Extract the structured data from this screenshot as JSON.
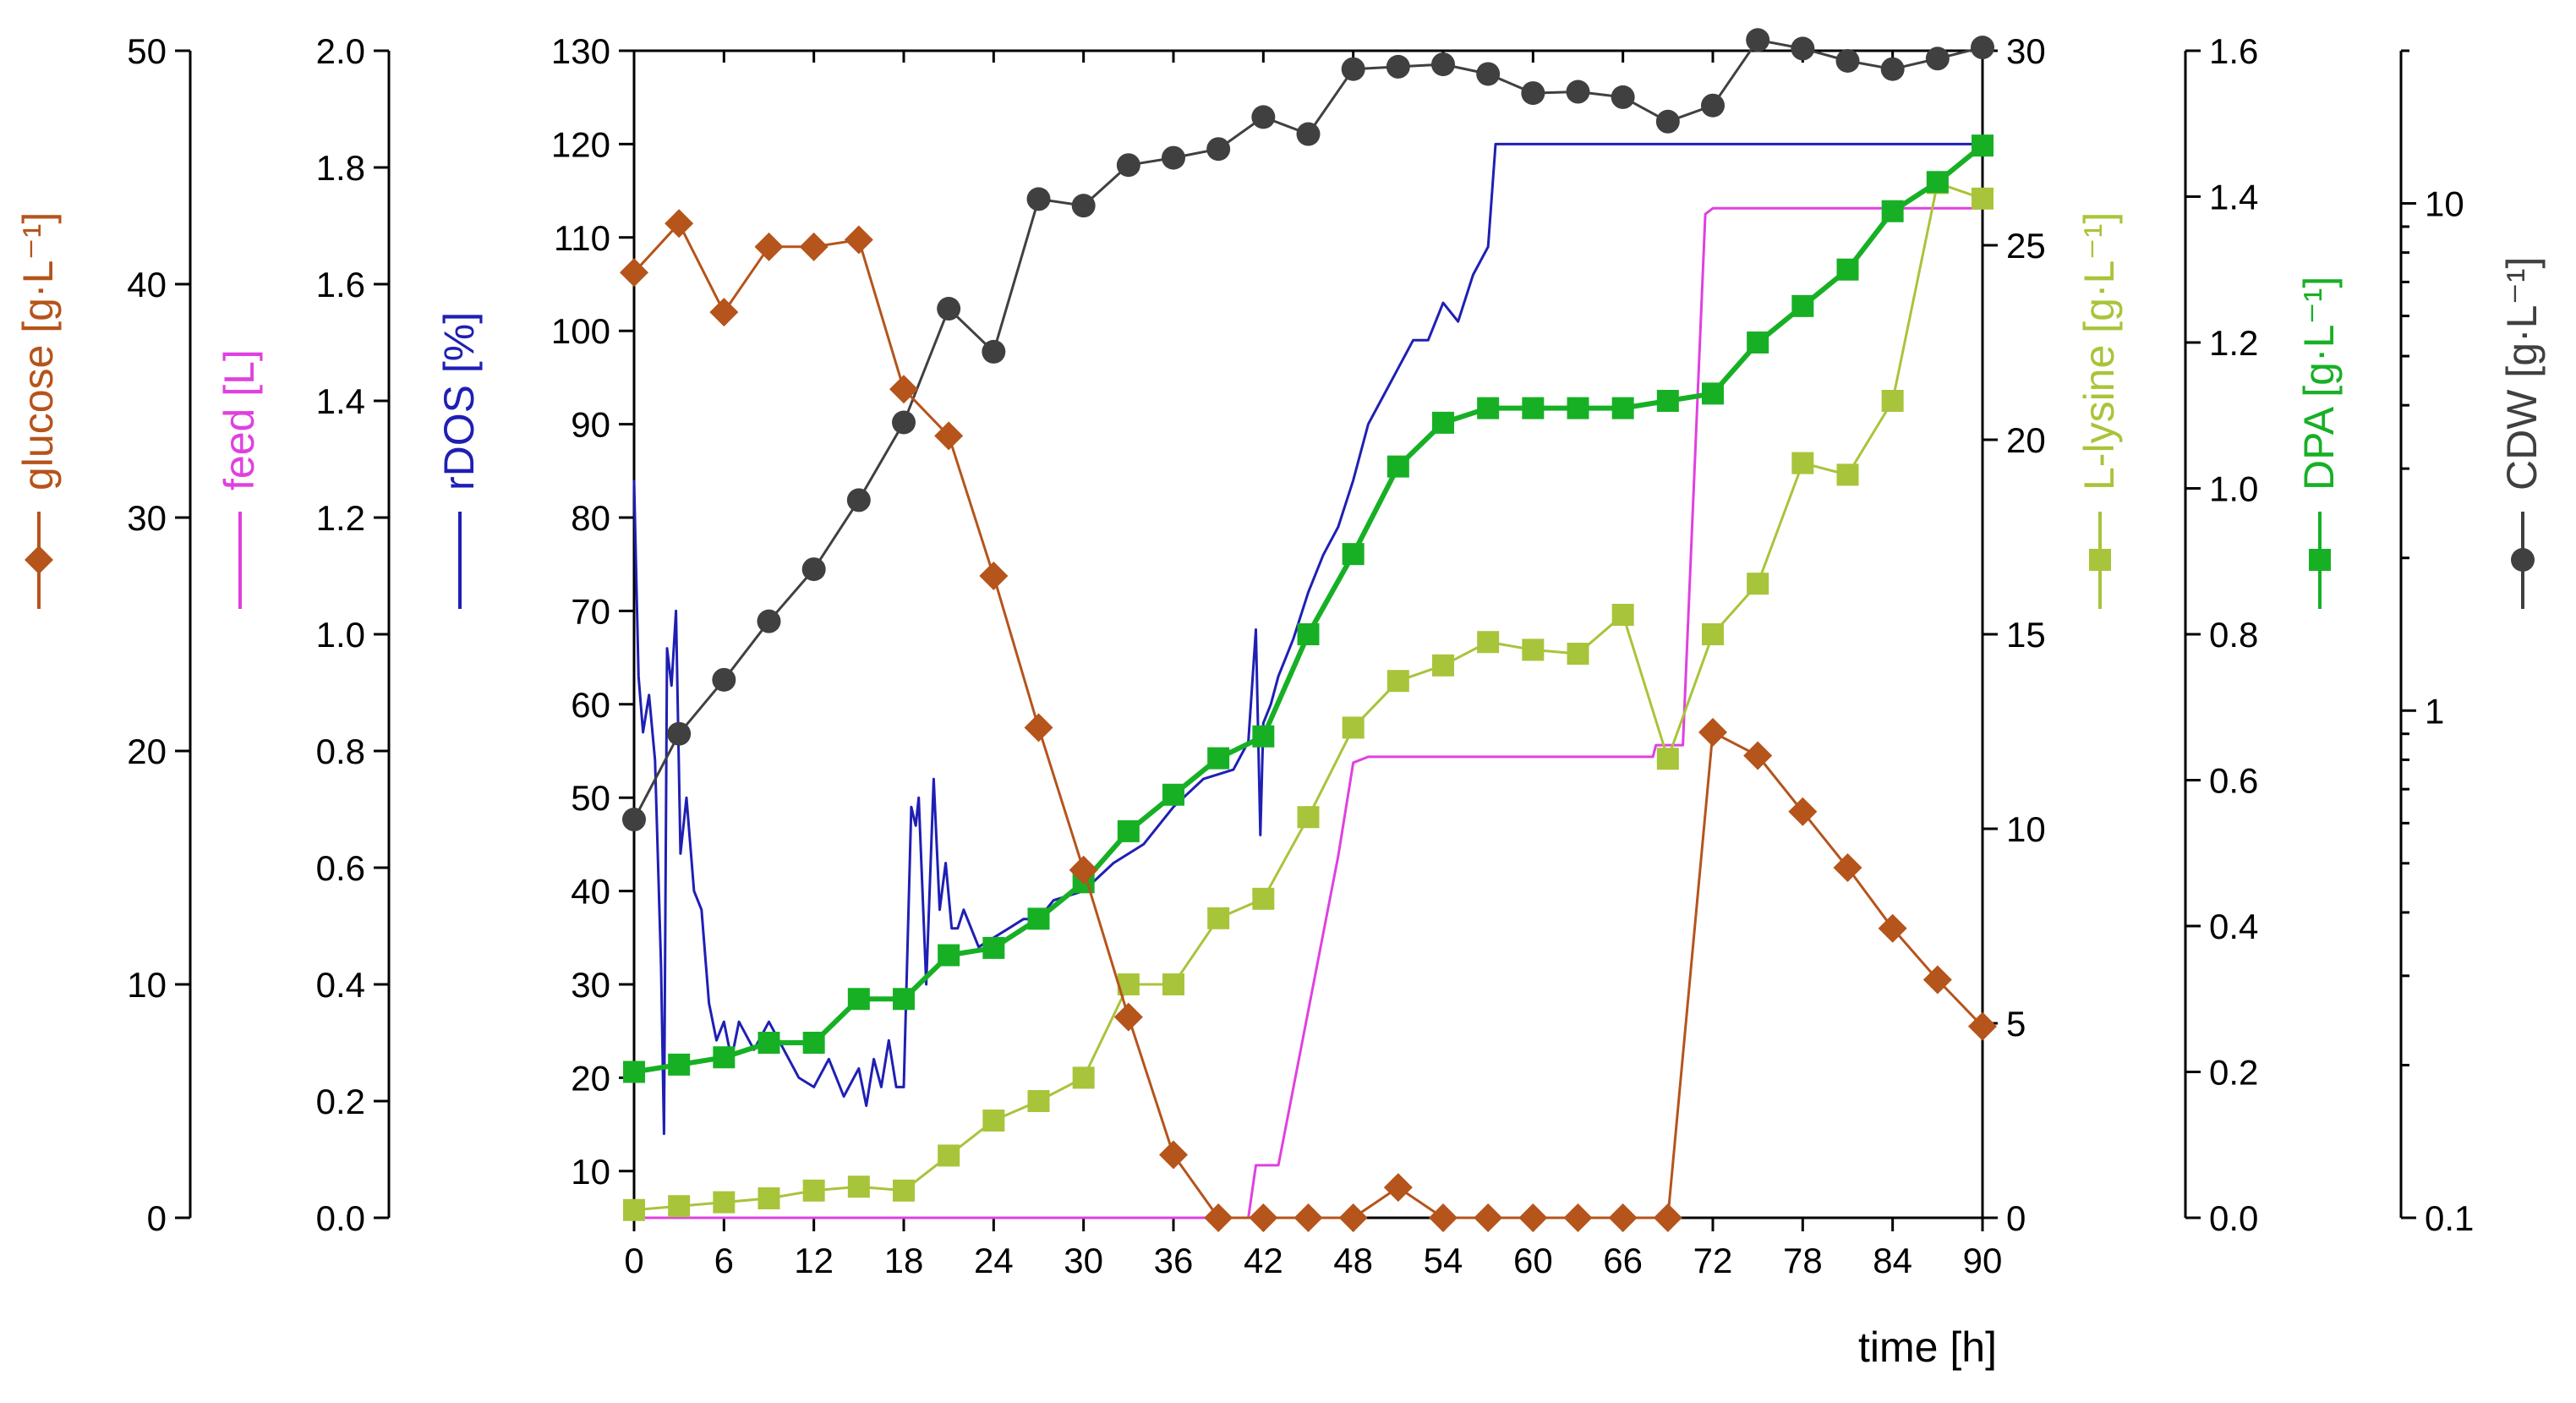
{
  "chart_data": {
    "type": "line",
    "xlabel": "time [h]",
    "xlim": [
      0,
      90
    ],
    "xticks": [
      0,
      6,
      12,
      18,
      24,
      30,
      36,
      42,
      48,
      54,
      60,
      66,
      72,
      78,
      84,
      90
    ],
    "axes": [
      {
        "key": "glucose",
        "label": "glucose [g·L⁻¹]",
        "color": "#b5541b",
        "range": [
          0,
          50
        ],
        "ticks": [
          0,
          10,
          20,
          30,
          40,
          50
        ],
        "tick_labels": [
          "0",
          "10",
          "20",
          "30",
          "40",
          "50"
        ],
        "scale": "linear",
        "side": "left"
      },
      {
        "key": "feed",
        "label": "feed [L]",
        "color": "#e040e0",
        "range": [
          0,
          2
        ],
        "ticks": [
          0,
          0.2,
          0.4,
          0.6,
          0.8,
          1.0,
          1.2,
          1.4,
          1.6,
          1.8,
          2.0
        ],
        "tick_labels": [
          "0.0",
          "0.2",
          "0.4",
          "0.6",
          "0.8",
          "1.0",
          "1.2",
          "1.4",
          "1.6",
          "1.8",
          "2.0"
        ],
        "scale": "linear",
        "side": "left"
      },
      {
        "key": "rdos",
        "label": "rDOS [%]",
        "color": "#1f1fb4",
        "range": [
          5,
          130
        ],
        "ticks": [
          10,
          20,
          30,
          40,
          50,
          60,
          70,
          80,
          90,
          100,
          110,
          120,
          130
        ],
        "tick_labels": [
          "10",
          "20",
          "30",
          "40",
          "50",
          "60",
          "70",
          "80",
          "90",
          "100",
          "110",
          "120",
          "130"
        ],
        "scale": "linear",
        "side": "left"
      },
      {
        "key": "lysine",
        "label": "L-lysine [g·L⁻¹]",
        "color": "#a8c43a",
        "range": [
          0,
          30
        ],
        "ticks": [
          0,
          5,
          10,
          15,
          20,
          25,
          30
        ],
        "tick_labels": [
          "0",
          "5",
          "10",
          "15",
          "20",
          "25",
          "30"
        ],
        "scale": "linear",
        "side": "right"
      },
      {
        "key": "dpa",
        "label": "DPA [g·L⁻¹]",
        "color": "#17b025",
        "range": [
          0,
          1.6
        ],
        "ticks": [
          0,
          0.2,
          0.4,
          0.6,
          0.8,
          1.0,
          1.2,
          1.4,
          1.6
        ],
        "tick_labels": [
          "0.0",
          "0.2",
          "0.4",
          "0.6",
          "0.8",
          "1.0",
          "1.2",
          "1.4",
          "1.6"
        ],
        "scale": "linear",
        "side": "right"
      },
      {
        "key": "cdw",
        "label": "CDW [g·L⁻¹]",
        "color": "#404040",
        "range": [
          0.1,
          20
        ],
        "ticks": [
          0.1,
          1,
          10
        ],
        "tick_labels": [
          "0.1",
          "1",
          "10"
        ],
        "scale": "log",
        "side": "right"
      }
    ],
    "series": [
      {
        "name": "glucose",
        "axis": "glucose",
        "marker": "diamond",
        "color": "#b5541b",
        "x": [
          0,
          3,
          6,
          9,
          12,
          15,
          18,
          21,
          24,
          27,
          30,
          33,
          36,
          39,
          42,
          45,
          48,
          51,
          54,
          57,
          60,
          63,
          66,
          69,
          72,
          75,
          78,
          81,
          84,
          87,
          90
        ],
        "y": [
          40.5,
          42.6,
          38.8,
          41.6,
          41.6,
          41.9,
          35.5,
          33.5,
          27.5,
          21.0,
          14.9,
          8.6,
          2.7,
          0,
          0,
          0,
          0,
          1.3,
          0,
          0,
          0,
          0,
          0,
          0,
          20.8,
          19.8,
          17.4,
          15.0,
          12.4,
          10.2,
          8.2
        ]
      },
      {
        "name": "feed",
        "axis": "feed",
        "marker": "none",
        "color": "#e040e0",
        "x": [
          0,
          41,
          41.5,
          43,
          47,
          48,
          49,
          68,
          68.2,
          70,
          71.5,
          72,
          90
        ],
        "y": [
          0,
          0,
          0.09,
          0.09,
          0.62,
          0.78,
          0.79,
          0.79,
          0.81,
          0.81,
          1.72,
          1.73,
          1.73
        ]
      },
      {
        "name": "rDOS",
        "axis": "rdos",
        "marker": "none",
        "color": "#1f1fb4",
        "x": [
          0,
          0.3,
          0.6,
          1.0,
          1.4,
          1.8,
          2.0,
          2.2,
          2.5,
          2.8,
          3.1,
          3.5,
          4.0,
          4.5,
          5.0,
          5.5,
          6.0,
          6.5,
          7.0,
          8.0,
          9.0,
          10.0,
          11.0,
          12.0,
          13.0,
          14.0,
          15.0,
          15.5,
          16.0,
          16.5,
          17.0,
          17.5,
          18.0,
          18.5,
          18.8,
          19.0,
          19.5,
          20.0,
          20.4,
          20.8,
          21.2,
          21.6,
          22.0,
          23.0,
          24.0,
          25.0,
          26.0,
          27.0,
          28.0,
          30.0,
          32.0,
          34.0,
          36.0,
          38.0,
          40.0,
          41.0,
          41.5,
          41.8,
          42.0,
          42.5,
          43.0,
          44.0,
          45.0,
          46.0,
          47.0,
          48.0,
          49.0,
          50.0,
          51.0,
          52.0,
          53.0,
          54.0,
          55.0,
          56.0,
          57.0,
          57.5,
          58.0,
          58.5,
          90.0
        ],
        "y": [
          84,
          63,
          57,
          61,
          54,
          32,
          14,
          66,
          62,
          70,
          44,
          50,
          40,
          38,
          28,
          24,
          26,
          22,
          26,
          23,
          26,
          23,
          20,
          19,
          22,
          18,
          21,
          17,
          22,
          19,
          24,
          19,
          19,
          49,
          47,
          50,
          30,
          52,
          38,
          43,
          36,
          36,
          38,
          34,
          35,
          36,
          37,
          37,
          39,
          40,
          43,
          45,
          49,
          52,
          53,
          56,
          68,
          46,
          58,
          60,
          63,
          67,
          72,
          76,
          79,
          84,
          90,
          93,
          96,
          99,
          99,
          103,
          101,
          106,
          109,
          120,
          120,
          120,
          120
        ]
      },
      {
        "name": "L-lysine",
        "axis": "lysine",
        "marker": "square",
        "color": "#a8c43a",
        "x": [
          0,
          3,
          6,
          9,
          12,
          15,
          18,
          21,
          24,
          27,
          30,
          33,
          36,
          39,
          42,
          45,
          48,
          51,
          54,
          57,
          60,
          63,
          66,
          69,
          72,
          75,
          78,
          81,
          84,
          87,
          90
        ],
        "y": [
          0.2,
          0.3,
          0.4,
          0.5,
          0.7,
          0.8,
          0.7,
          1.6,
          2.5,
          3.0,
          3.6,
          6.0,
          6.0,
          7.7,
          8.2,
          10.3,
          12.6,
          13.8,
          14.2,
          14.8,
          14.6,
          14.5,
          15.5,
          11.8,
          15.0,
          16.3,
          19.4,
          19.1,
          21.0,
          26.6,
          26.2
        ]
      },
      {
        "name": "DPA",
        "axis": "dpa",
        "marker": "square",
        "color": "#17b025",
        "x": [
          0,
          3,
          6,
          9,
          12,
          15,
          18,
          21,
          24,
          27,
          30,
          33,
          36,
          39,
          42,
          45,
          48,
          51,
          54,
          57,
          60,
          63,
          66,
          69,
          72,
          75,
          78,
          81,
          84,
          87,
          90
        ],
        "y": [
          0.2,
          0.21,
          0.22,
          0.24,
          0.24,
          0.3,
          0.3,
          0.36,
          0.37,
          0.41,
          0.46,
          0.53,
          0.58,
          0.63,
          0.66,
          0.8,
          0.91,
          1.03,
          1.09,
          1.11,
          1.11,
          1.11,
          1.11,
          1.12,
          1.13,
          1.2,
          1.25,
          1.3,
          1.38,
          1.42,
          1.47
        ]
      },
      {
        "name": "CDW",
        "axis": "cdw",
        "marker": "circle",
        "color": "#404040",
        "x": [
          0,
          3,
          6,
          9,
          12,
          15,
          18,
          21,
          24,
          27,
          30,
          33,
          36,
          39,
          42,
          45,
          48,
          51,
          54,
          57,
          60,
          63,
          66,
          69,
          72,
          75,
          78,
          81,
          84,
          87,
          90
        ],
        "y": [
          0.61,
          0.9,
          1.15,
          1.5,
          1.9,
          2.6,
          3.7,
          6.2,
          5.1,
          10.2,
          9.9,
          11.9,
          12.3,
          12.8,
          14.8,
          13.7,
          18.4,
          18.6,
          18.8,
          18.0,
          16.5,
          16.6,
          16.2,
          14.5,
          15.6,
          21.0,
          20.2,
          19.1,
          18.4,
          19.3,
          20.3
        ]
      }
    ]
  }
}
